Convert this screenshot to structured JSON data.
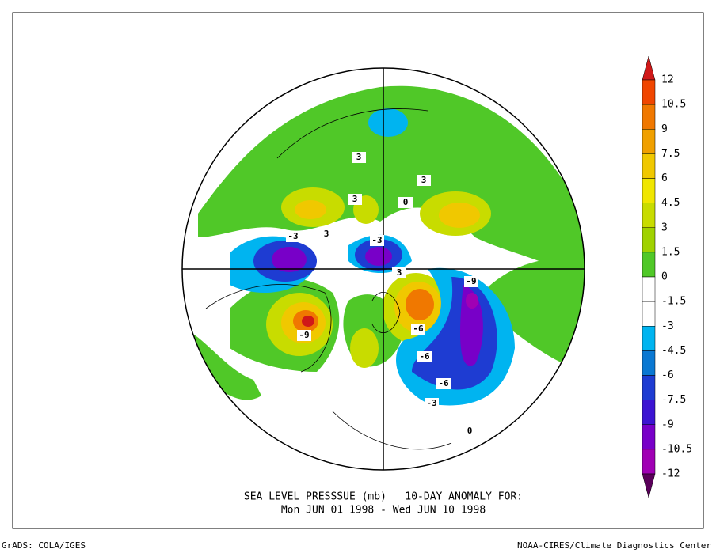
{
  "title": "SEA LEVEL PRESSSUE (mb)   10-DAY ANOMALY FOR:",
  "subtitle": "Mon JUN 01 1998 - Wed JUN 10 1998",
  "credit_left": "GrADS: COLA/IGES",
  "credit_right": "NOAA-CIRES/Climate Diagnostics Center",
  "colorbar": {
    "levels": [
      12,
      10.5,
      9,
      7.5,
      6,
      4.5,
      3,
      1.5,
      0,
      -1.5,
      -3,
      -4.5,
      -6,
      -7.5,
      -9,
      -10.5,
      -12
    ],
    "colors": [
      "#d01818",
      "#f04600",
      "#f07800",
      "#f0a000",
      "#f0c800",
      "#f0e600",
      "#c8dc00",
      "#a0d200",
      "#50c828",
      "#ffffff",
      "#ffffff",
      "#00b4f0",
      "#0a78d2",
      "#1e3cd2",
      "#3c14d2",
      "#7800c8",
      "#a000b4",
      "#96007e",
      "#5a005a"
    ]
  },
  "contour_labels": [
    "3",
    "3",
    "3",
    "3",
    "-3",
    "-3",
    "3",
    "-9",
    "-9",
    "-6",
    "-6",
    "-6",
    "-3",
    "0",
    "0"
  ]
}
